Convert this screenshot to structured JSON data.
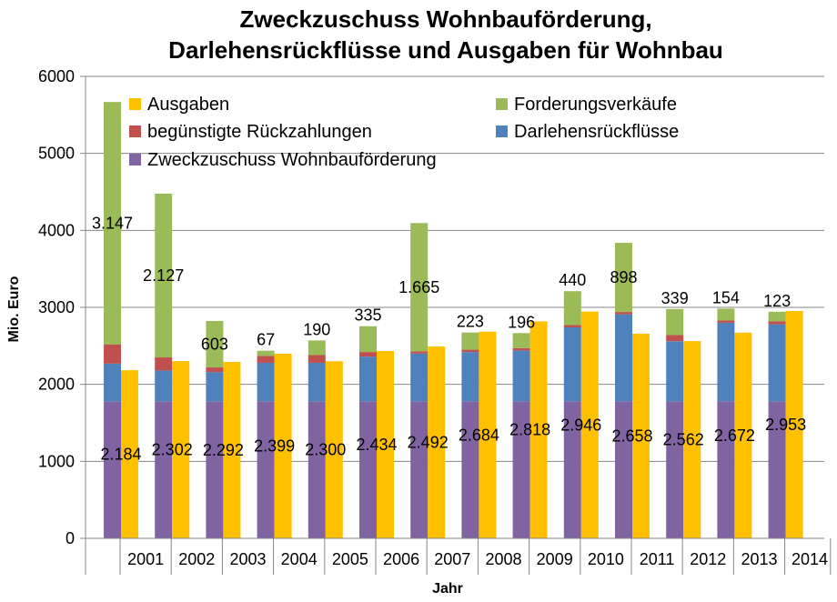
{
  "chart_data": {
    "type": "bar",
    "title_line1": "Zweckzuschuss Wohnbauförderung,",
    "title_line2": "Darlehensrückflüsse und Ausgaben für Wohnbau",
    "xlabel": "Jahr",
    "ylabel": "Mio. Euro",
    "ylim": [
      0,
      6000
    ],
    "yticks": [
      0,
      1000,
      2000,
      3000,
      4000,
      5000,
      6000
    ],
    "grid": true,
    "legend_position": "top",
    "categories": [
      "2001",
      "2002",
      "2003",
      "2004",
      "2005",
      "2006",
      "2007",
      "2008",
      "2009",
      "2010",
      "2011",
      "2012",
      "2013",
      "2014"
    ],
    "stacked_series": [
      {
        "name": "Zweckzuschuss Wohnbauförderung",
        "color": "#8064A2",
        "values": [
          1780,
          1780,
          1780,
          1780,
          1780,
          1780,
          1780,
          1780,
          1780,
          1780,
          1780,
          1780,
          1780,
          1780
        ]
      },
      {
        "name": "Darlehensrückflüsse",
        "color": "#4F81BD",
        "values": [
          490,
          400,
          380,
          500,
          500,
          580,
          620,
          640,
          660,
          960,
          1130,
          780,
          1020,
          1000
        ]
      },
      {
        "name": "begünstigte Rückzahlungen",
        "color": "#C0504D",
        "values": [
          250,
          170,
          60,
          90,
          100,
          60,
          30,
          30,
          30,
          30,
          30,
          80,
          30,
          40
        ]
      },
      {
        "name": "Forderungsverkäufe",
        "color": "#9BBB59",
        "values": [
          3147,
          2127,
          603,
          67,
          190,
          335,
          1665,
          223,
          196,
          440,
          898,
          339,
          154,
          123
        ],
        "labels": [
          "3.147",
          "2.127",
          "603",
          "67",
          "190",
          "335",
          "1.665",
          "223",
          "196",
          "440",
          "898",
          "339",
          "154",
          "123"
        ]
      }
    ],
    "ausgaben_series": {
      "name": "Ausgaben",
      "color": "#FFC000",
      "values": [
        2184,
        2302,
        2292,
        2399,
        2300,
        2434,
        2492,
        2684,
        2818,
        2946,
        2658,
        2562,
        2672,
        2953
      ],
      "labels": [
        "2.184",
        "2.302",
        "2.292",
        "2.399",
        "2.300",
        "2.434",
        "2.492",
        "2.684",
        "2.818",
        "2.946",
        "2.658",
        "2.562",
        "2.672",
        "2.953"
      ]
    },
    "legend": [
      {
        "name": "Ausgaben",
        "color": "#FFC000"
      },
      {
        "name": "Forderungsverkäufe",
        "color": "#9BBB59"
      },
      {
        "name": "begünstigte Rückzahlungen",
        "color": "#C0504D"
      },
      {
        "name": "Darlehensrückflüsse",
        "color": "#4F81BD"
      },
      {
        "name": "Zweckzuschuss Wohnbauförderung",
        "color": "#8064A2"
      }
    ]
  }
}
